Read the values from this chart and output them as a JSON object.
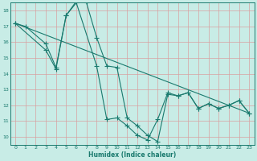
{
  "xlabel": "Humidex (Indice chaleur)",
  "xlim": [
    -0.5,
    23.5
  ],
  "ylim": [
    9.5,
    18.5
  ],
  "xticks": [
    0,
    1,
    2,
    3,
    4,
    5,
    6,
    7,
    8,
    9,
    10,
    11,
    12,
    13,
    14,
    15,
    16,
    17,
    18,
    19,
    20,
    21,
    22,
    23
  ],
  "yticks": [
    10,
    11,
    12,
    13,
    14,
    15,
    16,
    17,
    18
  ],
  "bg_color": "#c8ece6",
  "grid_color": "#d8a0a0",
  "line_color": "#1a7a6e",
  "line1_x": [
    0,
    1,
    3,
    4,
    5,
    6,
    7,
    8,
    9,
    10,
    11,
    12,
    13,
    14,
    15,
    16,
    17,
    18,
    19,
    20,
    21,
    22,
    23
  ],
  "line1_y": [
    17.2,
    17.0,
    15.9,
    14.4,
    17.7,
    18.6,
    18.5,
    16.3,
    14.5,
    14.4,
    11.2,
    10.7,
    10.1,
    9.7,
    12.7,
    12.6,
    12.8,
    11.8,
    12.1,
    11.8,
    12.0,
    12.3,
    11.5
  ],
  "line2_x": [
    0,
    3,
    4,
    5,
    6,
    8,
    9,
    10,
    11,
    12,
    13,
    14,
    15,
    16,
    17,
    18,
    19,
    20,
    21,
    22,
    23
  ],
  "line2_y": [
    17.2,
    15.5,
    14.3,
    17.7,
    18.5,
    14.5,
    11.1,
    11.2,
    10.7,
    10.1,
    9.8,
    11.1,
    12.8,
    12.6,
    12.8,
    11.8,
    12.1,
    11.8,
    12.0,
    12.3,
    11.5
  ],
  "line3_x": [
    0,
    23
  ],
  "line3_y": [
    17.2,
    11.5
  ]
}
